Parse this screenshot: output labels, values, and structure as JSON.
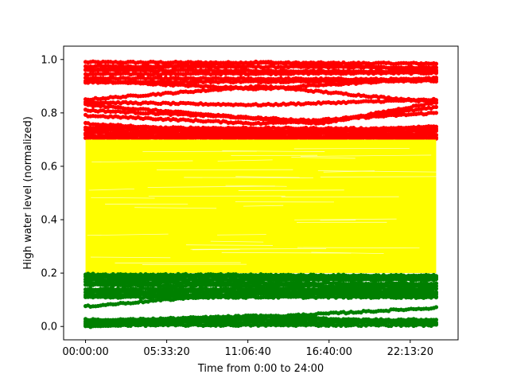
{
  "chart_data": {
    "type": "scatter",
    "title": "",
    "xlabel": "Time from 0:00 to 24:00",
    "ylabel": "High water level (normalized)",
    "x_unit": "seconds",
    "xlim": [
      -5400,
      91800
    ],
    "ylim": [
      -0.05,
      1.05
    ],
    "x_ticks": [
      {
        "value": 0,
        "label": "00:00:00"
      },
      {
        "value": 20000,
        "label": "05:33:20"
      },
      {
        "value": 40000,
        "label": "11:06:40"
      },
      {
        "value": 60000,
        "label": "16:40:00"
      },
      {
        "value": 80000,
        "label": "22:13:20"
      }
    ],
    "y_ticks": [
      {
        "value": 0.0,
        "label": "0.0"
      },
      {
        "value": 0.2,
        "label": "0.2"
      },
      {
        "value": 0.4,
        "label": "0.4"
      },
      {
        "value": 0.6,
        "label": "0.6"
      },
      {
        "value": 0.8,
        "label": "0.8"
      },
      {
        "value": 1.0,
        "label": "1.0"
      }
    ],
    "grid": false,
    "legend": "none",
    "x_range_data": [
      0,
      86400
    ],
    "series": [
      {
        "color": "#ff0000",
        "level_band": [
          0.7,
          1.0
        ],
        "tracks": [
          {
            "x": [
              0,
              86400
            ],
            "y": [
              0.99,
              0.985
            ]
          },
          {
            "x": [
              0,
              86400
            ],
            "y": [
              0.975,
              0.97
            ]
          },
          {
            "x": [
              0,
              86400
            ],
            "y": [
              0.96,
              0.955
            ]
          },
          {
            "x": [
              0,
              86400
            ],
            "y": [
              0.945,
              0.95
            ]
          },
          {
            "x": [
              0,
              86400
            ],
            "y": [
              0.93,
              0.925
            ]
          },
          {
            "x": [
              0,
              86400
            ],
            "y": [
              0.915,
              0.92
            ]
          },
          {
            "x": [
              0,
              43200,
              86400
            ],
            "y": [
              0.96,
              0.99,
              0.96
            ]
          },
          {
            "x": [
              0,
              43200,
              86400
            ],
            "y": [
              0.92,
              0.89,
              0.93
            ]
          },
          {
            "x": [
              0,
              43200,
              86400
            ],
            "y": [
              0.85,
              0.9,
              0.84
            ]
          },
          {
            "x": [
              0,
              43200,
              86400
            ],
            "y": [
              0.84,
              0.83,
              0.85
            ]
          },
          {
            "x": [
              0,
              58000,
              86400
            ],
            "y": [
              0.83,
              0.76,
              0.84
            ]
          },
          {
            "x": [
              0,
              58000,
              86400
            ],
            "y": [
              0.81,
              0.77,
              0.82
            ]
          },
          {
            "x": [
              0,
              43200,
              86400
            ],
            "y": [
              0.79,
              0.76,
              0.8
            ]
          },
          {
            "x": [
              0,
              86400
            ],
            "y": [
              0.745,
              0.74
            ]
          },
          {
            "x": [
              0,
              86400
            ],
            "y": [
              0.735,
              0.73
            ]
          },
          {
            "x": [
              0,
              86400
            ],
            "y": [
              0.725,
              0.72
            ]
          },
          {
            "x": [
              0,
              86400
            ],
            "y": [
              0.715,
              0.71
            ]
          },
          {
            "x": [
              0,
              86400
            ],
            "y": [
              0.705,
              0.705
            ]
          },
          {
            "x": [
              0,
              43200,
              86400
            ],
            "y": [
              0.76,
              0.72,
              0.75
            ]
          }
        ]
      },
      {
        "color": "#ffff00",
        "level_band": [
          0.2,
          0.7
        ],
        "filled": true
      },
      {
        "color": "#008000",
        "level_band": [
          0.0,
          0.2
        ],
        "tracks": [
          {
            "x": [
              0,
              86400
            ],
            "y": [
              0.195,
              0.19
            ]
          },
          {
            "x": [
              0,
              86400
            ],
            "y": [
              0.185,
              0.185
            ]
          },
          {
            "x": [
              0,
              86400
            ],
            "y": [
              0.175,
              0.175
            ]
          },
          {
            "x": [
              0,
              86400
            ],
            "y": [
              0.165,
              0.16
            ]
          },
          {
            "x": [
              0,
              86400
            ],
            "y": [
              0.155,
              0.15
            ]
          },
          {
            "x": [
              0,
              86400
            ],
            "y": [
              0.14,
              0.14
            ]
          },
          {
            "x": [
              0,
              86400
            ],
            "y": [
              0.13,
              0.13
            ]
          },
          {
            "x": [
              0,
              86400
            ],
            "y": [
              0.12,
              0.12
            ]
          },
          {
            "x": [
              0,
              86400
            ],
            "y": [
              0.11,
              0.11
            ]
          },
          {
            "x": [
              0,
              43200,
              86400
            ],
            "y": [
              0.075,
              0.13,
              0.11
            ]
          },
          {
            "x": [
              0,
              86400
            ],
            "y": [
              0.025,
              0.025
            ]
          },
          {
            "x": [
              0,
              86400
            ],
            "y": [
              0.015,
              0.015
            ]
          },
          {
            "x": [
              0,
              86400
            ],
            "y": [
              0.005,
              0.005
            ]
          },
          {
            "x": [
              0,
              86400
            ],
            "y": [
              0.0,
              0.07
            ]
          },
          {
            "x": [
              0,
              43200,
              86400
            ],
            "y": [
              0.02,
              0.04,
              0.01
            ]
          }
        ]
      }
    ]
  }
}
